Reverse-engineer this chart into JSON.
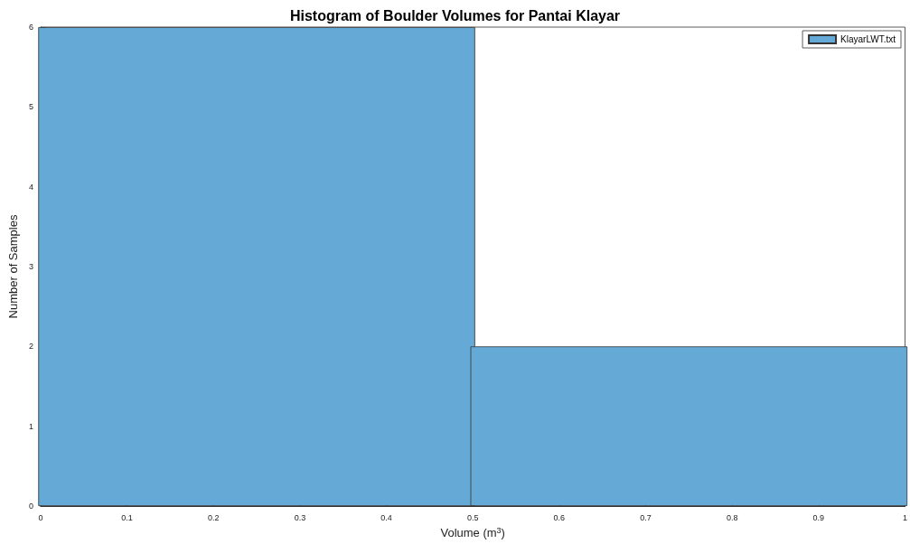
{
  "chart_data": {
    "type": "histogram",
    "title": "Histogram of Boulder Volumes for Pantai Klayar",
    "xlabel": "Volume (m$^{3}$)",
    "ylabel": "Number of Samples",
    "bins": [
      0,
      0.5,
      1
    ],
    "series": [
      {
        "name": "KlayarLWT.txt",
        "color": "#65a9d7",
        "values": [
          6,
          2
        ]
      }
    ],
    "xlim": [
      0,
      1
    ],
    "xticks": [
      0,
      0.1,
      0.2,
      0.3,
      0.4,
      0.5,
      0.6,
      0.7,
      0.8,
      0.9,
      1
    ],
    "ylim": [
      0,
      6
    ],
    "yticks": [
      0,
      1,
      2,
      3,
      4,
      5,
      6
    ],
    "grid": false,
    "legend": "top right"
  }
}
